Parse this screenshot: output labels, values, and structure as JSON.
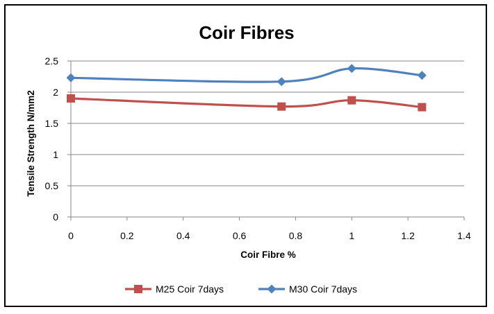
{
  "chart_data": {
    "type": "line",
    "title": "Coir Fibres",
    "xlabel": "Coir Fibre %",
    "ylabel": "Tensile Strength N/mm2",
    "xlim": [
      0,
      1.4
    ],
    "ylim": [
      0,
      2.5
    ],
    "xticks": [
      "0",
      "0.2",
      "0.4",
      "0.6",
      "0.8",
      "1",
      "1.2",
      "1.4"
    ],
    "yticks": [
      "0",
      "0.5",
      "1",
      "1.5",
      "2",
      "2.5"
    ],
    "grid": "horizontal",
    "legend_position": "bottom",
    "series": [
      {
        "name": "M25 Coir 7days",
        "color": "#c0504d",
        "marker": "square",
        "x": [
          0,
          0.75,
          1,
          1.25
        ],
        "y": [
          1.9,
          1.77,
          1.87,
          1.76
        ]
      },
      {
        "name": "M30 Coir 7days",
        "color": "#4f81bd",
        "marker": "diamond",
        "x": [
          0,
          0.75,
          1,
          1.25
        ],
        "y": [
          2.23,
          2.17,
          2.38,
          2.27
        ]
      }
    ]
  }
}
